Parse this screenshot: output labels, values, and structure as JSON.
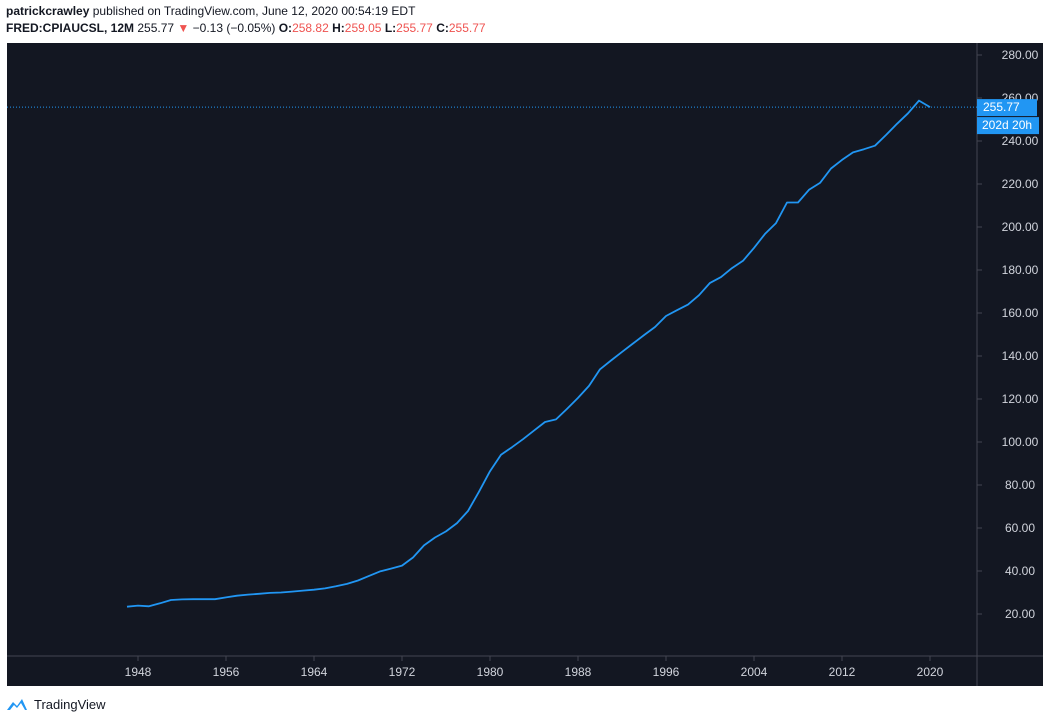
{
  "header": {
    "author": "patrickcrawley",
    "published_text": "published on TradingView.com, June 12, 2020 00:54:19 EDT",
    "symbol": "FRED:CPIAUCSL, 12M",
    "last": "255.77",
    "change": "−0.13 (−0.05%)",
    "o_label": "O:",
    "o_val": "258.82",
    "h_label": "H:",
    "h_val": "259.05",
    "l_label": "L:",
    "l_val": "255.77",
    "c_label": "C:",
    "c_val": "255.77"
  },
  "footer": {
    "brand": "TradingView"
  },
  "colors": {
    "background": "#131722",
    "line": "#2196f3",
    "text": "#d1d4dc",
    "down": "#ef5350"
  },
  "chart_data": {
    "type": "line",
    "series": [
      {
        "x": [
          1947,
          1948,
          1949,
          1950,
          1951,
          1952,
          1953,
          1954,
          1955,
          1956,
          1957,
          1958,
          1959,
          1960,
          1961,
          1962,
          1963,
          1964,
          1965,
          1966,
          1967,
          1968,
          1969,
          1970,
          1971,
          1972,
          1973,
          1974,
          1975,
          1976,
          1977,
          1978,
          1979,
          1980,
          1981,
          1982,
          1983,
          1984,
          1985,
          1986,
          1987,
          1988,
          1989,
          1990,
          1991,
          1992,
          1993,
          1994,
          1995,
          1996,
          1997,
          1998,
          1999,
          2000,
          2001,
          2002,
          2003,
          2004,
          2005,
          2006,
          2007,
          2008,
          2009,
          2010,
          2011,
          2012,
          2013,
          2014,
          2015,
          2016,
          2017,
          2018,
          2019,
          2020
        ],
        "values": [
          23.4,
          23.9,
          23.6,
          25.0,
          26.5,
          26.8,
          26.9,
          26.9,
          26.9,
          27.7,
          28.5,
          29.0,
          29.4,
          29.8,
          30.0,
          30.4,
          30.9,
          31.3,
          31.9,
          32.9,
          34.0,
          35.6,
          37.7,
          39.8,
          41.1,
          42.5,
          46.3,
          51.9,
          55.6,
          58.4,
          62.3,
          67.9,
          76.9,
          86.4,
          94.1,
          97.6,
          101.3,
          105.3,
          109.3,
          110.5,
          115.4,
          120.5,
          126.1,
          133.8,
          137.9,
          141.9,
          145.8,
          149.7,
          153.5,
          158.6,
          161.3,
          163.9,
          168.3,
          174.0,
          176.7,
          180.9,
          184.3,
          190.3,
          196.8,
          201.8,
          211.4,
          211.4,
          217.3,
          220.5,
          227.2,
          231.2,
          234.7,
          236.2,
          237.8,
          242.8,
          248.0,
          252.9,
          258.8,
          255.77
        ]
      }
    ],
    "xticks": [
      "1948",
      "1956",
      "1964",
      "1972",
      "1980",
      "1988",
      "1996",
      "2004",
      "2012",
      "2020"
    ],
    "yticks": [
      "20.00",
      "40.00",
      "60.00",
      "80.00",
      "100.00",
      "120.00",
      "140.00",
      "160.00",
      "180.00",
      "200.00",
      "220.00",
      "240.00",
      "260.00",
      "280.00"
    ],
    "ylim": [
      0,
      290
    ],
    "last_value_label": "255.77",
    "countdown_label": "202d 20h",
    "grid": false
  }
}
